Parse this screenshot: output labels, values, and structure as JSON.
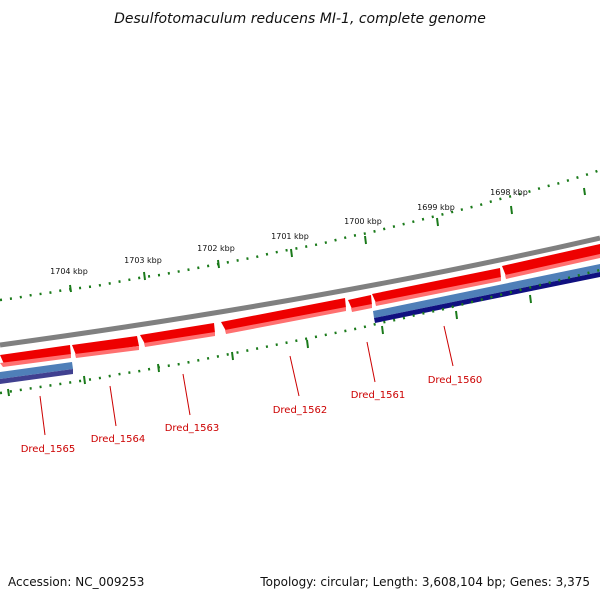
{
  "title": "Desulfotomaculum reducens MI-1, complete genome",
  "footer": {
    "accession": "Accession: NC_009253",
    "summary": "Topology: circular; Length: 3,608,104 bp; Genes: 3,375"
  },
  "ruler_labels": [
    "1704 kbp",
    "1703 kbp",
    "1702 kbp",
    "1701 kbp",
    "1700 kbp",
    "1699 kbp",
    "1698 kbp"
  ],
  "genes": [
    {
      "label": "Dred_1565",
      "strand": "forward"
    },
    {
      "label": "Dred_1564",
      "strand": "forward"
    },
    {
      "label": "Dred_1563",
      "strand": "forward"
    },
    {
      "label": "Dred_1562",
      "strand": "forward"
    },
    {
      "label": "Dred_1561",
      "strand": "forward"
    },
    {
      "label": "Dred_1560",
      "strand": "forward"
    }
  ],
  "colors": {
    "backbone": "#808080",
    "cds": "#ee0000",
    "cds_light": "#ff7070",
    "feature_blue": "#4f7fb8",
    "feature_navy": "#101080",
    "ticks": "#1a7a1a",
    "gene_label": "#cc0000"
  }
}
